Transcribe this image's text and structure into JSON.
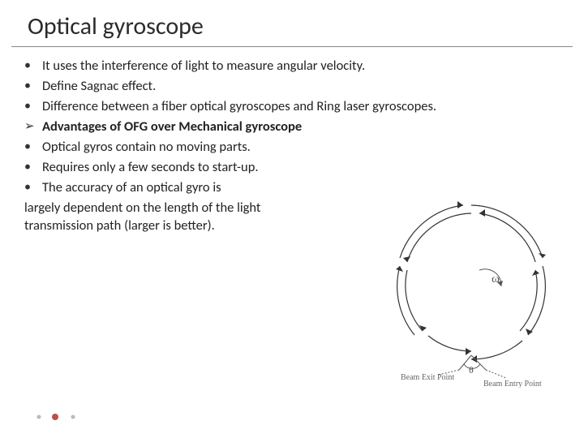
{
  "title": "Optical gyroscope",
  "bullets": [
    {
      "marker": "•",
      "text": "It uses the interference of light to measure angular velocity.",
      "bold": false
    },
    {
      "marker": "•",
      "text": "Define Sagnac effect.",
      "bold": false
    },
    {
      "marker": "•",
      "text": "Difference between a fiber optical gyroscopes and Ring laser gyroscopes.",
      "bold": false
    },
    {
      "marker": "➢",
      "text": "Advantages of OFG over Mechanical gyroscope",
      "bold": true
    },
    {
      "marker": "•",
      "text": "Optical gyros contain no moving parts.",
      "bold": false
    },
    {
      "marker": "•",
      "text": "Requires only a few seconds to start-up.",
      "bold": false
    },
    {
      "marker": "•",
      "text": "The accuracy of an optical gyro is",
      "bold": false
    }
  ],
  "continuation": [
    "largely dependent on the length of the light",
    "transmission path (larger is better)."
  ],
  "diagram": {
    "omega": "ω",
    "theta": "θ",
    "beam_exit": "Beam Exit Point",
    "beam_entry": "Beam Entry Point",
    "arc_count_outer": 5,
    "arc_count_inner": 5,
    "stroke": "#333333",
    "text_color": "#555555"
  },
  "footer": {
    "dot1_color": "#bbbbbb",
    "dot2_color": "#bc5049",
    "dot3_color": "#bbbbbb"
  }
}
